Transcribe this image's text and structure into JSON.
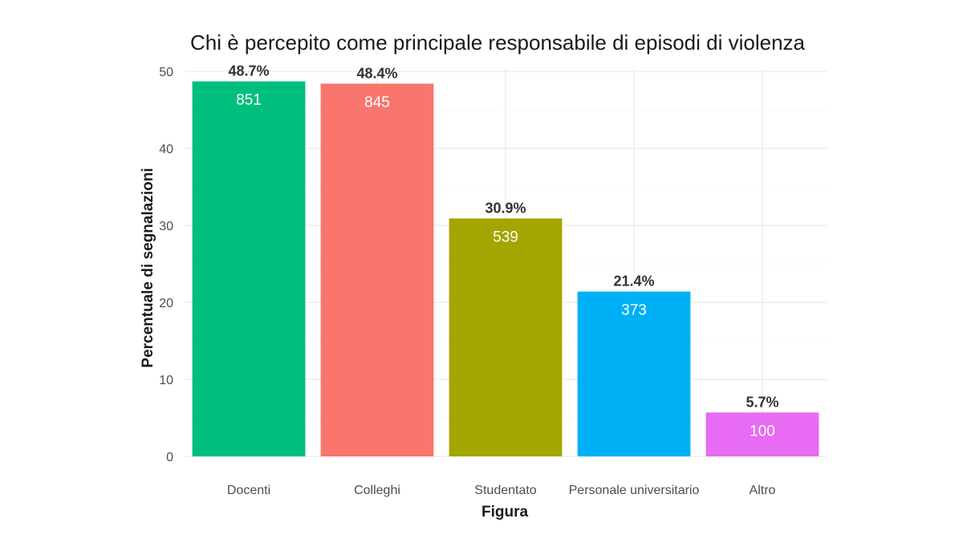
{
  "chart_data": {
    "type": "bar",
    "title": "Chi è percepito come principale responsabile di episodi di violenza",
    "xlabel": "Figura",
    "ylabel": "Percentuale di segnalazioni",
    "ylim": [
      0,
      50
    ],
    "yticks": [
      0,
      10,
      20,
      30,
      40,
      50
    ],
    "grid": true,
    "categories": [
      "Docenti",
      "Colleghi",
      "Studentato",
      "Personale universitario",
      "Altro"
    ],
    "values": [
      48.7,
      48.4,
      30.9,
      21.4,
      5.7
    ],
    "percent_labels": [
      "48.7%",
      "48.4%",
      "30.9%",
      "21.4%",
      "5.7%"
    ],
    "counts": [
      "851",
      "845",
      "539",
      "373",
      "100"
    ],
    "colors": [
      "#00BF7D",
      "#F8766D",
      "#A3A500",
      "#00B0F6",
      "#E76BF3"
    ]
  }
}
